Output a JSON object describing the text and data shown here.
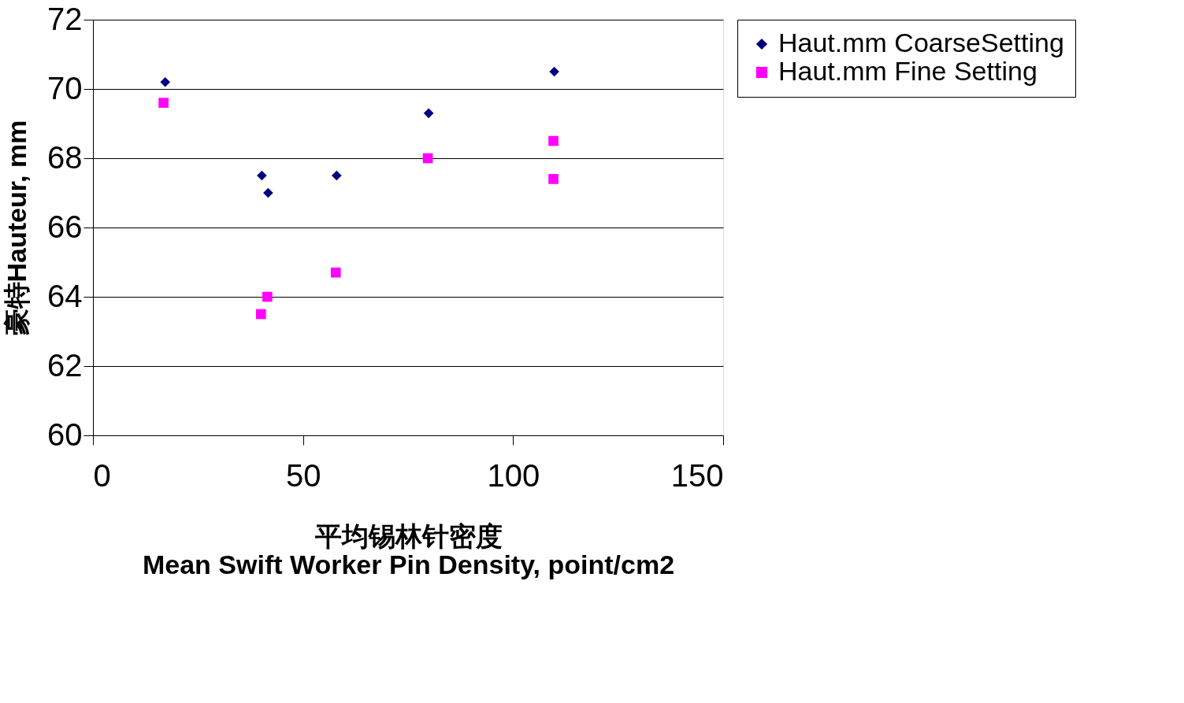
{
  "chart_data": {
    "type": "scatter",
    "xlabel": "平均锡林针密度\nMean Swift Worker Pin Density, point/cm2",
    "ylabel": "豪特Hauteur, mm",
    "series": [
      {
        "name": "Haut.mm CoarseSetting",
        "color": "#000080",
        "marker": "diamond",
        "x": [
          17.2,
          40.2,
          41.7,
          58,
          79.9,
          109.8
        ],
        "values": [
          70.2,
          67.5,
          67.0,
          67.5,
          69.3,
          70.5
        ]
      },
      {
        "name": "Haut.mm Fine Setting",
        "color": "#ff00ff",
        "marker": "square",
        "x": [
          16.8,
          40,
          41.5,
          57.8,
          79.7,
          109.6,
          109.6
        ],
        "values": [
          69.6,
          63.5,
          64.0,
          64.7,
          68.0,
          68.5,
          67.4
        ]
      }
    ],
    "xlim": [
      0,
      150
    ],
    "xticks": [
      0,
      50,
      100,
      150
    ],
    "ylim": [
      60,
      72
    ],
    "yticks": [
      60,
      62,
      64,
      66,
      68,
      70,
      72
    ],
    "grid": "y",
    "legend": "right"
  }
}
